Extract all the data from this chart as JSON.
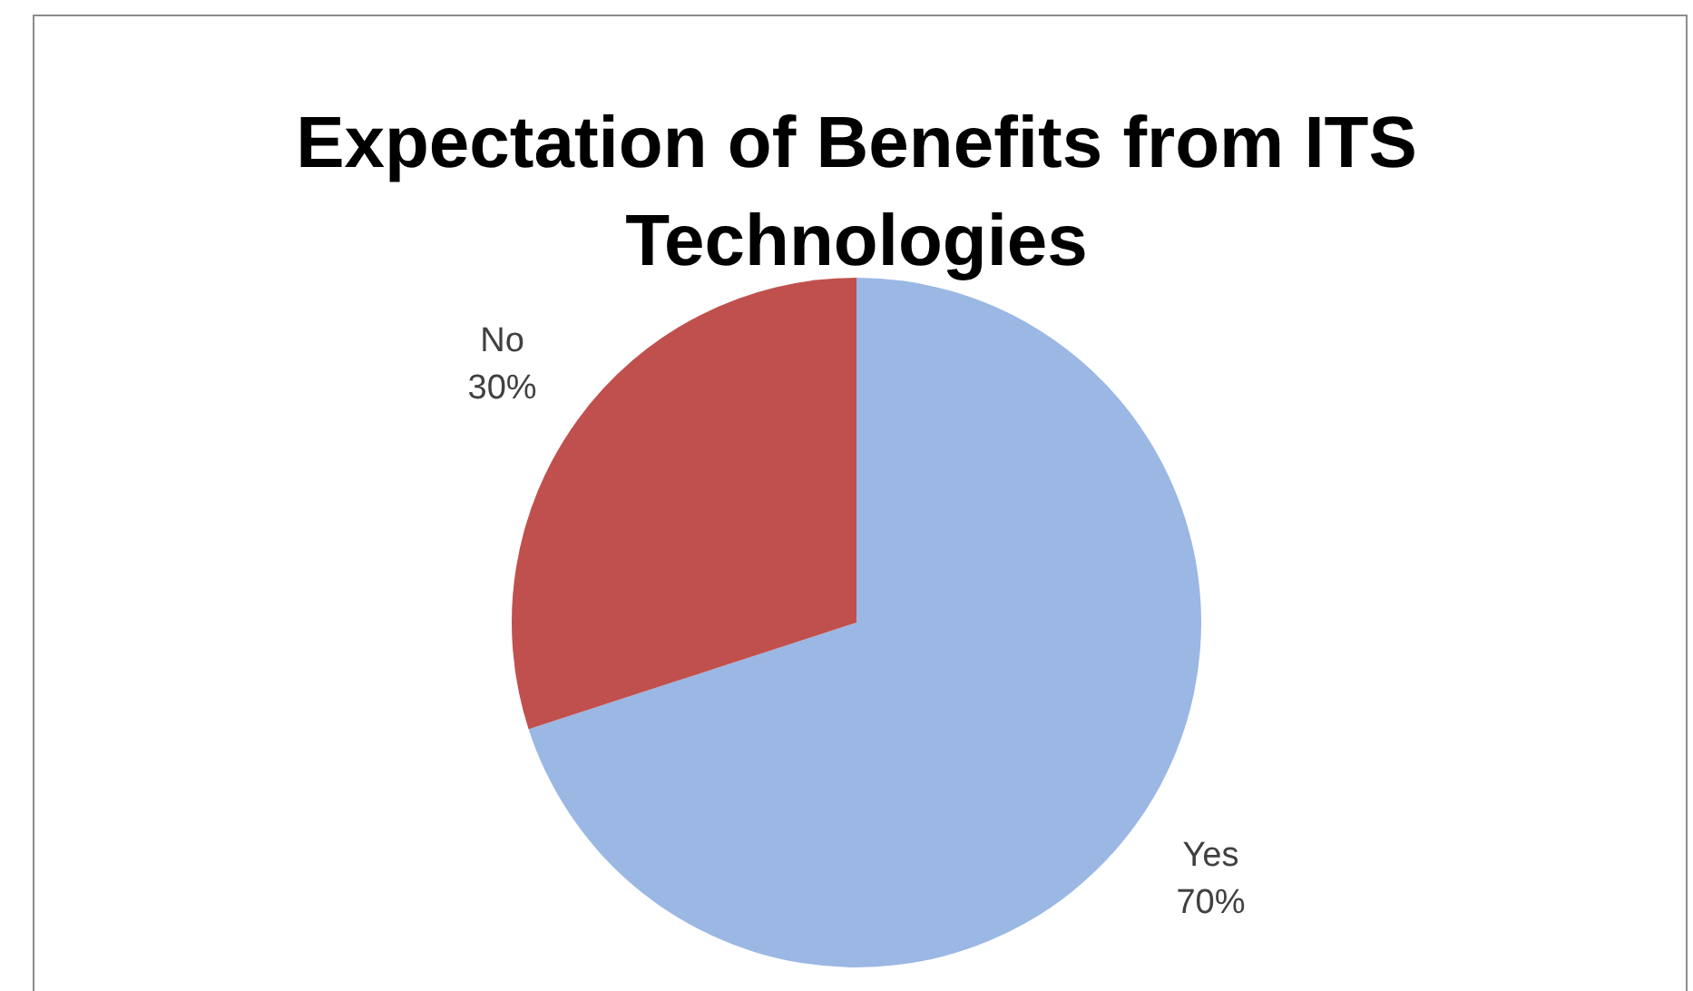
{
  "chart_data": {
    "type": "pie",
    "title": "Expectation of Benefits from ITS Technologies",
    "categories": [
      "Yes",
      "No"
    ],
    "values": [
      70,
      30
    ],
    "value_labels": [
      "70%",
      "30%"
    ],
    "colors": [
      "#9bb7e4",
      "#c0504d"
    ],
    "legend": false
  }
}
